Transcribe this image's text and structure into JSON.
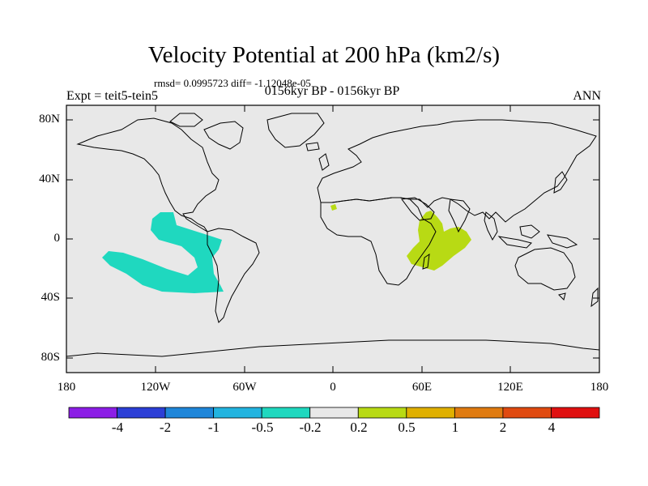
{
  "title": "Velocity Potential at 200 hPa (km2/s)",
  "stats": "rmsd= 0.0995723 diff= -1.12048e-05",
  "period": "0156kyr BP - 0156kyr BP",
  "expt": "Expt = teit5-tein5",
  "season": "ANN",
  "lat_labels": [
    "80N",
    "40N",
    "0",
    "40S",
    "80S"
  ],
  "lon_labels": [
    "180",
    "120W",
    "60W",
    "0",
    "60E",
    "120E",
    "180"
  ],
  "colorbar": {
    "labels": [
      "-4",
      "-2",
      "-1",
      "-0.5",
      "-0.2",
      "0.2",
      "0.5",
      "1",
      "2",
      "4"
    ],
    "colors": [
      "#8c1ee6",
      "#2c3fd6",
      "#1f86d9",
      "#22b4e0",
      "#1fd8bf",
      "#e8e8e8",
      "#b8da14",
      "#e0b000",
      "#e07b10",
      "#e04a10",
      "#e01010"
    ]
  },
  "map": {
    "ocean_color": "#e8e8e8",
    "negative_anomaly_color": "#1fd8bf",
    "positive_anomaly_color": "#b8da14"
  }
}
